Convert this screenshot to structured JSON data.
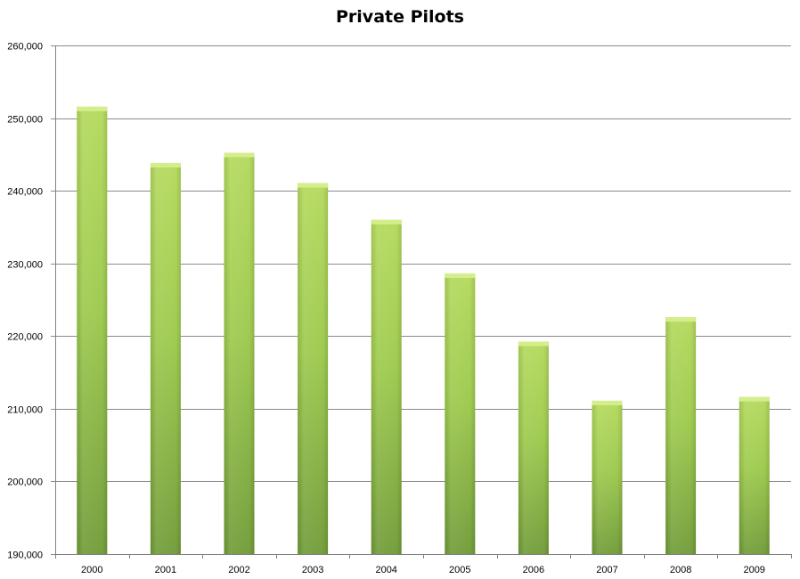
{
  "chart_data": {
    "type": "bar",
    "title": "Private Pilots",
    "xlabel": "",
    "ylabel": "",
    "categories": [
      "2000",
      "2001",
      "2002",
      "2003",
      "2004",
      "2005",
      "2006",
      "2007",
      "2008",
      "2009"
    ],
    "values": [
      251561,
      243823,
      245230,
      241045,
      235994,
      228619,
      219233,
      211096,
      222596,
      211619
    ],
    "ylim": [
      190000,
      260000
    ],
    "yticks": [
      190000,
      200000,
      210000,
      220000,
      230000,
      240000,
      250000,
      260000
    ],
    "ytick_labels": [
      "190,000",
      "200,000",
      "210,000",
      "220,000",
      "230,000",
      "240,000",
      "250,000",
      "260,000"
    ],
    "grid": true,
    "legend": "none",
    "colors": {
      "bar_light": "#b3d95a",
      "bar_mid": "#9bc94a",
      "bar_dark": "#6f9a35",
      "bar_top": "#d4ee8c",
      "grid": "#8a8a8a",
      "axis": "#808080"
    }
  }
}
